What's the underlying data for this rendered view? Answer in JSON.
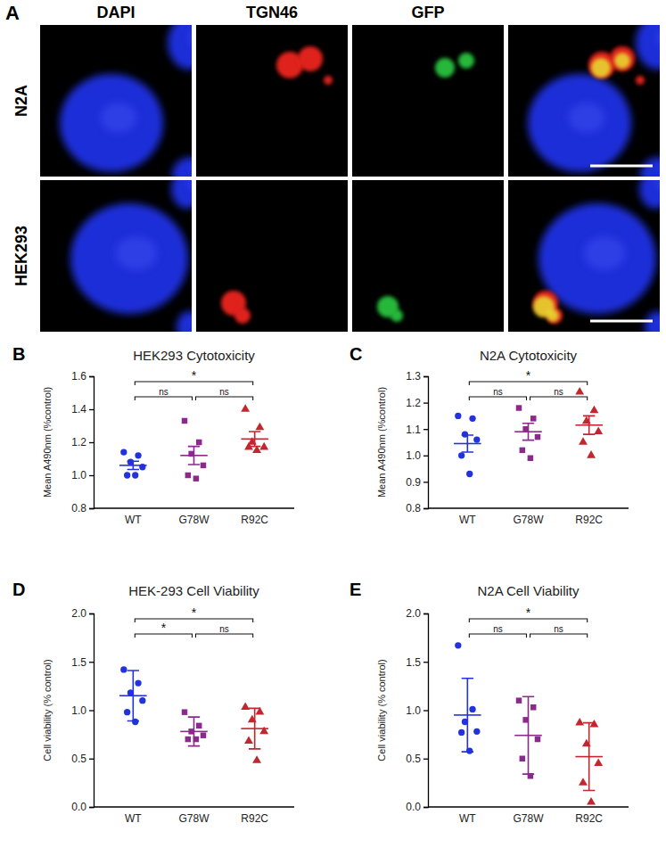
{
  "panel_a": {
    "label": "A",
    "columns": [
      "DAPI",
      "TGN46",
      "GFP"
    ],
    "rows": [
      "N2A",
      "HEK293"
    ]
  },
  "chart_data": [
    {
      "type": "dot",
      "panel": "B",
      "title": "HEK293 Cytotoxicity",
      "ylabel": "Mean A490nm (%control)",
      "categories": [
        "WT",
        "G78W",
        "R92C"
      ],
      "values": [
        [
          1.14,
          1.12,
          1.08,
          1.05,
          1.0,
          1.0
        ],
        [
          1.33,
          1.2,
          1.13,
          1.06,
          1.0,
          0.98
        ],
        [
          1.4,
          1.29,
          1.2,
          1.17,
          1.17,
          1.15
        ]
      ],
      "means": [
        1.06,
        1.12,
        1.22
      ],
      "errors": [
        0.025,
        0.055,
        0.045
      ],
      "colors": [
        "#2233dd",
        "#8a2a8c",
        "#c2262e"
      ],
      "marker": [
        "circle",
        "square",
        "triangle"
      ],
      "ylim": [
        0.8,
        1.6
      ],
      "yticks": [
        0.8,
        {
          "value": 1,
          "label": "1.0"
        },
        1.2,
        1.4,
        1.6
      ],
      "comparisons": [
        {
          "groups": [
            "WT",
            "R92C"
          ],
          "label": "*"
        },
        {
          "groups": [
            "WT",
            "G78W"
          ],
          "label": "ns"
        },
        {
          "groups": [
            "G78W",
            "R92C"
          ],
          "label": "ns"
        }
      ]
    },
    {
      "type": "dot",
      "panel": "C",
      "title": "N2A Cytotoxicity",
      "ylabel": "Mean A490nm (%control)",
      "categories": [
        "WT",
        "G78W",
        "R92C"
      ],
      "values": [
        [
          1.15,
          1.14,
          1.08,
          1.06,
          1.0,
          0.93
        ],
        [
          1.18,
          1.14,
          1.1,
          1.07,
          1.02,
          0.99
        ],
        [
          1.24,
          1.17,
          1.13,
          1.09,
          1.05,
          1.0
        ]
      ],
      "means": [
        1.045,
        1.09,
        1.115
      ],
      "errors": [
        0.032,
        0.032,
        0.035
      ],
      "colors": [
        "#2233dd",
        "#8a2a8c",
        "#c2262e"
      ],
      "marker": [
        "circle",
        "square",
        "triangle"
      ],
      "ylim": [
        0.8,
        1.3
      ],
      "yticks": [
        0.8,
        0.9,
        {
          "value": 1,
          "label": "1.0"
        },
        1.1,
        1.2,
        1.3
      ],
      "comparisons": [
        {
          "groups": [
            "WT",
            "R92C"
          ],
          "label": "*"
        },
        {
          "groups": [
            "WT",
            "G78W"
          ],
          "label": "ns"
        },
        {
          "groups": [
            "G78W",
            "R92C"
          ],
          "label": "ns"
        }
      ]
    },
    {
      "type": "dot",
      "panel": "D",
      "title": "HEK-293 Cell Viability",
      "ylabel": "Cell viability (% control)",
      "categories": [
        "WT",
        "G78W",
        "R92C"
      ],
      "values": [
        [
          1.42,
          1.28,
          1.18,
          1.1,
          0.98,
          0.88
        ],
        [
          0.98,
          0.84,
          0.78,
          0.74,
          0.7,
          0.7
        ],
        [
          1.03,
          0.98,
          0.9,
          0.78,
          0.68,
          0.48
        ]
      ],
      "means": [
        1.15,
        0.78,
        0.81
      ],
      "errors": [
        0.26,
        0.15,
        0.21
      ],
      "colors": [
        "#2233dd",
        "#8a2a8c",
        "#c2262e"
      ],
      "marker": [
        "circle",
        "square",
        "triangle"
      ],
      "ylim": [
        0,
        2
      ],
      "yticks": [
        {
          "value": 0,
          "label": "0.0"
        },
        0.5,
        {
          "value": 1,
          "label": "1.0"
        },
        1.5,
        {
          "value": 2,
          "label": "2.0"
        }
      ],
      "comparisons": [
        {
          "groups": [
            "WT",
            "R92C"
          ],
          "label": "*"
        },
        {
          "groups": [
            "WT",
            "G78W"
          ],
          "label": "*"
        },
        {
          "groups": [
            "G78W",
            "R92C"
          ],
          "label": "ns"
        }
      ]
    },
    {
      "type": "dot",
      "panel": "E",
      "title": "N2A Cell Viability",
      "ylabel": "Cell viability (% control)",
      "categories": [
        "WT",
        "G78W",
        "R92C"
      ],
      "values": [
        [
          1.67,
          1.01,
          0.88,
          0.78,
          0.77,
          0.58
        ],
        [
          1.1,
          1.03,
          0.9,
          0.7,
          0.5,
          0.32
        ],
        [
          0.87,
          0.85,
          0.65,
          0.45,
          0.25,
          0.05
        ]
      ],
      "means": [
        0.95,
        0.74,
        0.52
      ],
      "errors": [
        0.38,
        0.4,
        0.35
      ],
      "colors": [
        "#2233dd",
        "#8a2a8c",
        "#c2262e"
      ],
      "marker": [
        "circle",
        "square",
        "triangle"
      ],
      "ylim": [
        0,
        2
      ],
      "yticks": [
        {
          "value": 0,
          "label": "0.0"
        },
        0.5,
        {
          "value": 1,
          "label": "1.0"
        },
        1.5,
        {
          "value": 2,
          "label": "2.0"
        }
      ],
      "comparisons": [
        {
          "groups": [
            "WT",
            "R92C"
          ],
          "label": "*"
        },
        {
          "groups": [
            "WT",
            "G78W"
          ],
          "label": "ns"
        },
        {
          "groups": [
            "G78W",
            "R92C"
          ],
          "label": "ns"
        }
      ]
    }
  ]
}
